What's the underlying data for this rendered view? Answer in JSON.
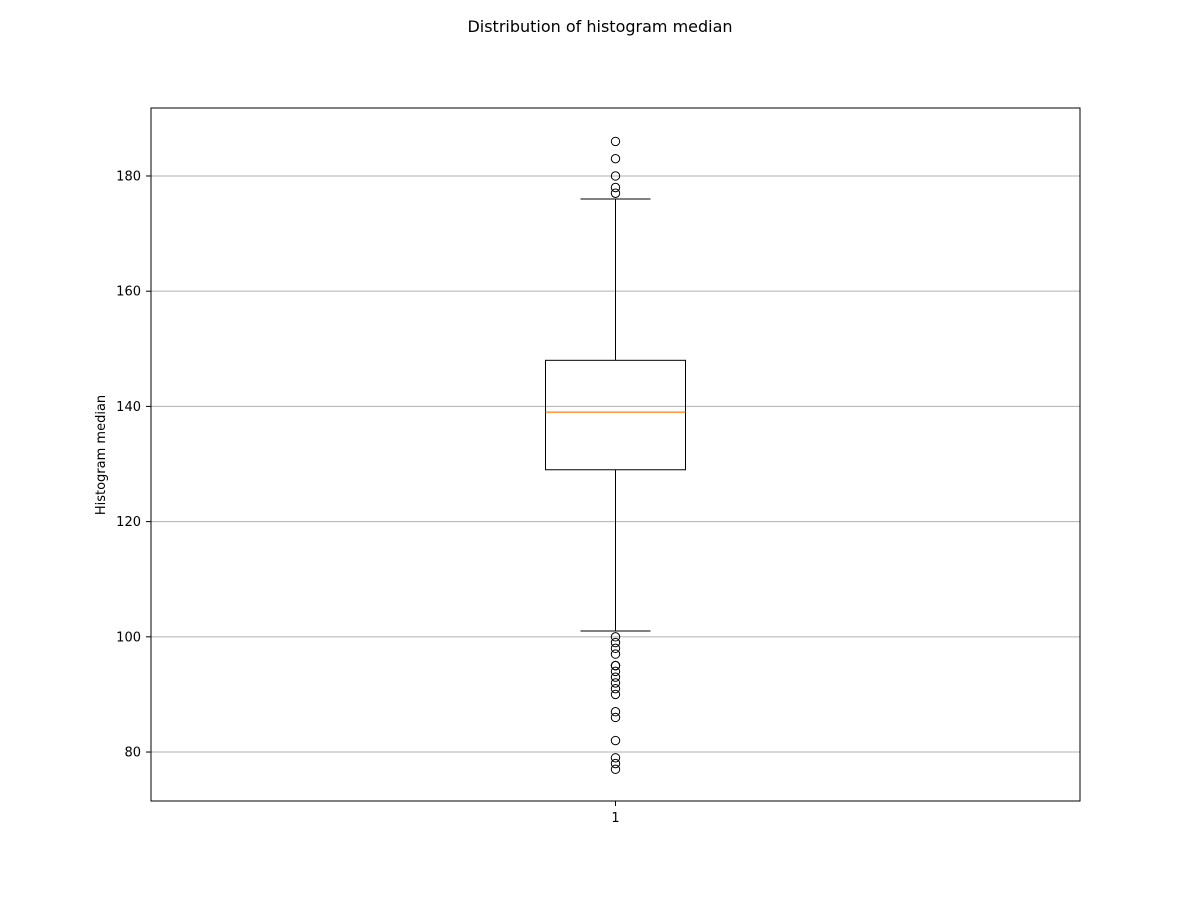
{
  "chart_data": {
    "type": "boxplot",
    "title": "Distribution of histogram median",
    "xlabel": "",
    "ylabel": "Histogram median",
    "categories": [
      "1"
    ],
    "ylim": [
      71.5,
      191.8
    ],
    "yticks": [
      80,
      100,
      120,
      140,
      160,
      180
    ],
    "grid": "y",
    "boxes": [
      {
        "category": "1",
        "whisker_low": 101,
        "q1": 129,
        "median": 139,
        "q3": 148,
        "whisker_high": 176,
        "outliers": [
          186,
          183,
          180,
          178,
          177,
          100,
          99,
          98,
          97,
          95,
          95,
          94,
          93,
          92,
          91,
          90,
          87,
          86,
          82,
          79,
          78,
          77
        ]
      }
    ],
    "colors": {
      "box": "#000000",
      "median": "#ff7f0e",
      "grid": "#b0b0b0"
    }
  }
}
